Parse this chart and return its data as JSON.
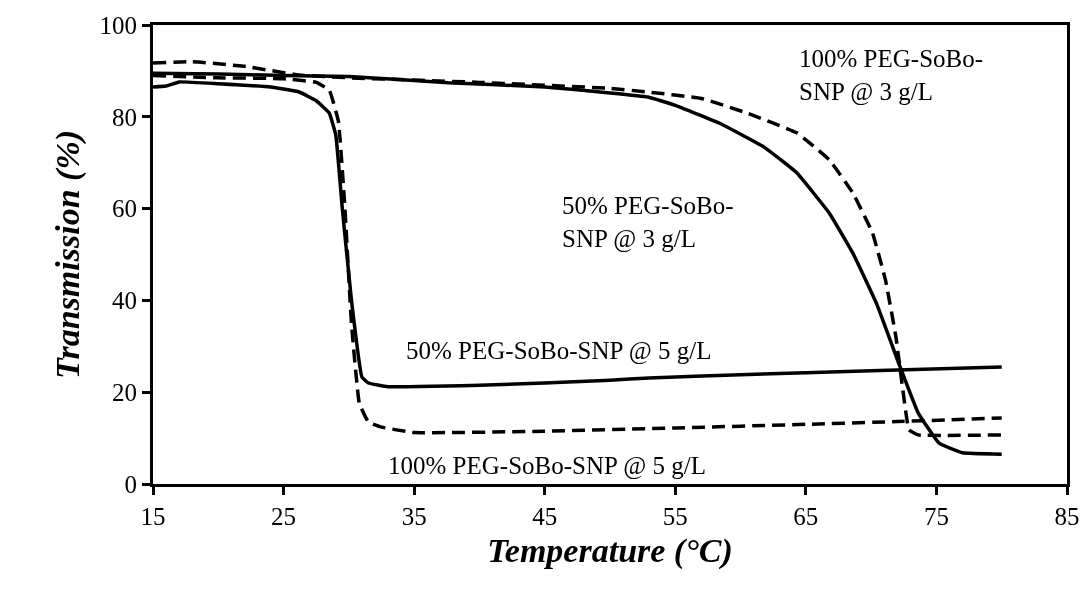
{
  "chart_data": {
    "type": "line",
    "xlabel": "Temperature (°C)",
    "ylabel": "Transmission (%)",
    "xlim": [
      15,
      85
    ],
    "xticks": [
      15,
      25,
      35,
      45,
      55,
      65,
      75,
      85
    ],
    "ylim": [
      0,
      100
    ],
    "yticks": [
      0,
      20,
      40,
      60,
      80,
      100
    ],
    "legend": false,
    "marker": "none",
    "series": [
      {
        "name": "50% PEG-SoBo-SNP @ 5 g/L",
        "color": "#000000",
        "line_style": "solid",
        "x": [
          15,
          16,
          17,
          20,
          24,
          26.2,
          27.5,
          28.5,
          29,
          29.5,
          30.2,
          31,
          31.5,
          33,
          40,
          50,
          53,
          60,
          70,
          80
        ],
        "values": [
          86.5,
          86.7,
          87.6,
          87.2,
          86.5,
          85.4,
          83.5,
          80.8,
          76,
          60,
          40,
          23.3,
          22,
          21.2,
          21.5,
          22.6,
          23.1,
          23.8,
          24.7,
          25.5
        ]
      },
      {
        "name": "100% PEG-SoBo-SNP @ 5 g/L",
        "color": "#000000",
        "line_style": "dashed",
        "x": [
          15,
          20,
          25,
          27.5,
          28.5,
          29.2,
          29.7,
          30.2,
          30.8,
          31.5,
          32.5,
          35,
          45,
          55,
          65,
          72,
          80
        ],
        "values": [
          89,
          88.5,
          88.3,
          87.5,
          85.8,
          79,
          60,
          35,
          17.6,
          13.5,
          12.4,
          11.2,
          11.5,
          12.2,
          13,
          13.6,
          14.4
        ]
      },
      {
        "name": "50% PEG-SoBo-\nSNP @ 3 g/L",
        "color": "#000000",
        "line_style": "solid",
        "x": [
          15,
          20,
          25,
          30,
          37.6,
          45,
          50,
          52.9,
          55,
          58.4,
          61.8,
          64.3,
          66.8,
          68.6,
          70.4,
          72.1,
          73.6,
          75.2,
          77,
          80
        ],
        "values": [
          89.5,
          89.3,
          89,
          88.8,
          87.4,
          86.5,
          85.2,
          84.3,
          82.5,
          78.6,
          73.4,
          67.8,
          59,
          50.3,
          39.4,
          26.4,
          15.5,
          8.9,
          6.8,
          6.5
        ]
      },
      {
        "name": "100% PEG-SoBo-\nSNP @ 3 g/L",
        "color": "#000000",
        "line_style": "dashed",
        "x": [
          15,
          18,
          22,
          26.2,
          30,
          40,
          50,
          52.9,
          57,
          60.5,
          64.3,
          66.8,
          68.6,
          70.1,
          71.1,
          71.9,
          72.4,
          72.9,
          73.6,
          80
        ],
        "values": [
          91.7,
          92,
          91,
          89.1,
          88.5,
          87.5,
          86.2,
          85.4,
          84,
          80.8,
          76.5,
          70.6,
          63.4,
          54.7,
          44.4,
          32,
          21.1,
          11.8,
          10.7,
          10.7
        ]
      }
    ]
  }
}
